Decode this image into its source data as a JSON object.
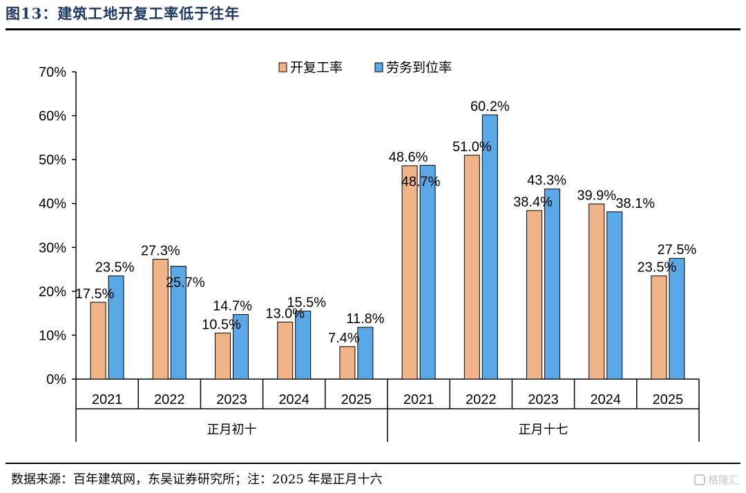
{
  "header": {
    "title": "图13：建筑工地开复工率低于往年"
  },
  "footer": {
    "source": "数据来源：百年建筑网，东吴证券研究所；注：2025 年是正月十六",
    "watermark": "格隆汇"
  },
  "colors": {
    "series1": "#f0b488",
    "series2": "#5aa8e6",
    "title": "#1f3864"
  },
  "chart_data": {
    "type": "bar",
    "title": "",
    "ylim": [
      0,
      70
    ],
    "yticks": [
      "0%",
      "10%",
      "20%",
      "30%",
      "40%",
      "50%",
      "60%",
      "70%"
    ],
    "legend_position": "top",
    "grid": false,
    "groups": [
      {
        "name": "正月初十",
        "categories": [
          "2021",
          "2022",
          "2023",
          "2024",
          "2025"
        ]
      },
      {
        "name": "正月十七",
        "categories": [
          "2021",
          "2022",
          "2023",
          "2024",
          "2025"
        ]
      }
    ],
    "series": [
      {
        "name": "开复工率",
        "values": [
          17.5,
          27.3,
          10.5,
          13.0,
          7.4,
          48.6,
          51.0,
          38.4,
          39.9,
          23.5
        ],
        "labels": [
          "17.5%",
          "27.3%",
          "10.5%",
          "13.0%",
          "7.4%",
          "48.6%",
          "51.0%",
          "38.4%",
          "39.9%",
          "23.5%"
        ]
      },
      {
        "name": "劳务到位率",
        "values": [
          23.5,
          25.7,
          14.7,
          15.5,
          11.8,
          48.7,
          60.2,
          43.3,
          38.1,
          27.5
        ],
        "labels": [
          "23.5%",
          "25.7%",
          "14.7%",
          "15.5%",
          "11.8%",
          "48.7%",
          "60.2%",
          "43.3%",
          "38.1%",
          "27.5%"
        ]
      }
    ]
  }
}
